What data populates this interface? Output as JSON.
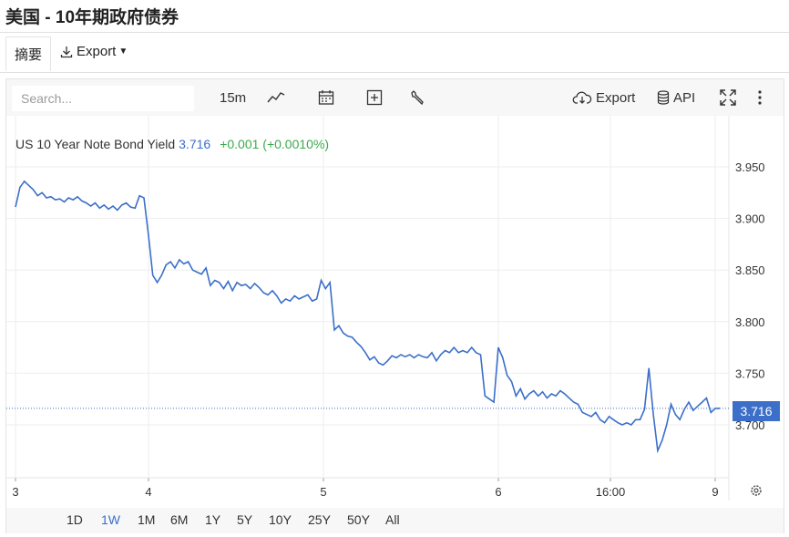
{
  "page": {
    "title": "美国 - 10年期政府债券"
  },
  "subnav": {
    "summary_tab": "摘要",
    "export_label": "Export"
  },
  "toolbar": {
    "search_placeholder": "Search...",
    "interval": "15m",
    "export_label": "Export",
    "api_label": "API"
  },
  "legend": {
    "name": "US 10 Year Note Bond Yield",
    "value": "3.716",
    "change": "+0.001 (+0.0010%)"
  },
  "current_price_label": "3.716",
  "ranges": [
    {
      "label": "1D",
      "active": false
    },
    {
      "label": "1W",
      "active": true
    },
    {
      "label": "1M",
      "active": false
    },
    {
      "label": "6M",
      "active": false
    },
    {
      "label": "1Y",
      "active": false
    },
    {
      "label": "5Y",
      "active": false
    },
    {
      "label": "10Y",
      "active": false
    },
    {
      "label": "25Y",
      "active": false
    },
    {
      "label": "50Y",
      "active": false
    },
    {
      "label": "All",
      "active": false
    }
  ],
  "colors": {
    "line": "#3b6fc9",
    "positive": "#3aaa4a",
    "grid": "#eeeeee"
  },
  "chart_data": {
    "type": "line",
    "title": "US 10 Year Note Bond Yield",
    "x_tick_labels": [
      "3",
      "4",
      "5",
      "6",
      "16:00",
      "9"
    ],
    "y_tick_labels": [
      "3.950",
      "3.900",
      "3.850",
      "3.800",
      "3.750",
      "3.700"
    ],
    "ylim": [
      3.66,
      4.0
    ],
    "current_value": 3.716,
    "grid": true,
    "series": [
      {
        "values": [
          3.911,
          3.93,
          3.936,
          3.932,
          3.928,
          3.922,
          3.925,
          3.92,
          3.921,
          3.918,
          3.919,
          3.916,
          3.92,
          3.918,
          3.921,
          3.917,
          3.915,
          3.912,
          3.915,
          3.91,
          3.913,
          3.909,
          3.912,
          3.908,
          3.913,
          3.915,
          3.911,
          3.91,
          3.922,
          3.92,
          3.885,
          3.845,
          3.838,
          3.845,
          3.855,
          3.858,
          3.852,
          3.86,
          3.856,
          3.858,
          3.85,
          3.848,
          3.846,
          3.852,
          3.835,
          3.84,
          3.838,
          3.832,
          3.839,
          3.83,
          3.838,
          3.835,
          3.836,
          3.832,
          3.837,
          3.833,
          3.828,
          3.826,
          3.83,
          3.825,
          3.818,
          3.822,
          3.82,
          3.825,
          3.822,
          3.824,
          3.826,
          3.82,
          3.822,
          3.84,
          3.832,
          3.838,
          3.792,
          3.796,
          3.789,
          3.786,
          3.785,
          3.78,
          3.776,
          3.77,
          3.763,
          3.766,
          3.76,
          3.758,
          3.762,
          3.767,
          3.765,
          3.768,
          3.766,
          3.768,
          3.765,
          3.768,
          3.766,
          3.765,
          3.77,
          3.762,
          3.768,
          3.772,
          3.77,
          3.775,
          3.77,
          3.772,
          3.77,
          3.775,
          3.77,
          3.768,
          3.728,
          3.725,
          3.722,
          3.775,
          3.765,
          3.748,
          3.742,
          3.728,
          3.735,
          3.725,
          3.73,
          3.733,
          3.728,
          3.732,
          3.726,
          3.73,
          3.728,
          3.733,
          3.73,
          3.726,
          3.722,
          3.72,
          3.712,
          3.71,
          3.708,
          3.712,
          3.705,
          3.702,
          3.708,
          3.705,
          3.702,
          3.7,
          3.702,
          3.7,
          3.705,
          3.705,
          3.715,
          3.755,
          3.71,
          3.675,
          3.685,
          3.7,
          3.72,
          3.71,
          3.705,
          3.715,
          3.722,
          3.714,
          3.718,
          3.722,
          3.726,
          3.712,
          3.716,
          3.716
        ]
      }
    ]
  }
}
